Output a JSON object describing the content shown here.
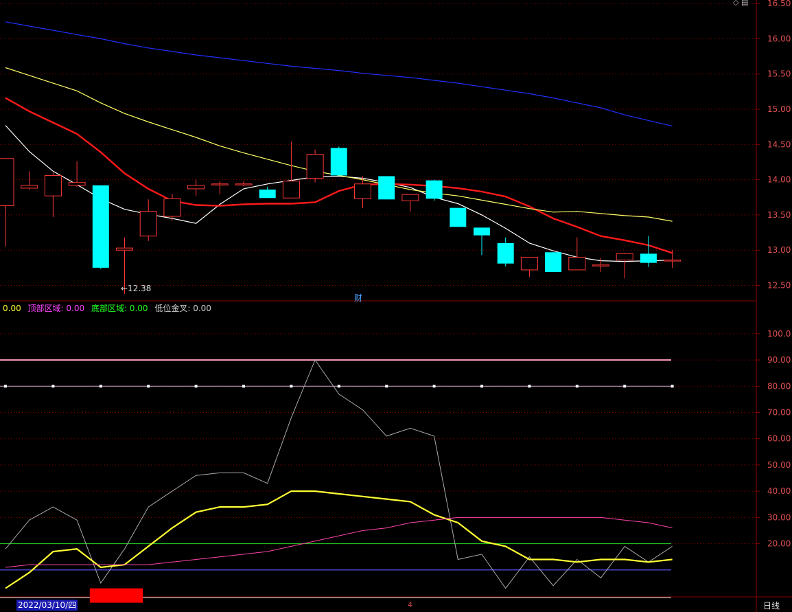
{
  "chart_data": [
    {
      "type": "candlestick",
      "ylim": [
        12.3,
        16.55
      ],
      "y_ticks": [
        "16.50",
        "16.00",
        "15.50",
        "15.00",
        "14.50",
        "14.00",
        "13.50",
        "13.00",
        "12.50"
      ],
      "candles": [
        {
          "o": 13.63,
          "h": 14.3,
          "l": 13.05,
          "c": 14.3
        },
        {
          "o": 13.88,
          "h": 14.12,
          "l": 13.86,
          "c": 13.92
        },
        {
          "o": 13.77,
          "h": 14.1,
          "l": 13.47,
          "c": 14.06
        },
        {
          "o": 13.92,
          "h": 14.26,
          "l": 13.9,
          "c": 13.96
        },
        {
          "o": 13.92,
          "h": 13.92,
          "l": 12.73,
          "c": 12.75
        },
        {
          "o": 13.0,
          "h": 13.18,
          "l": 12.38,
          "c": 13.03
        },
        {
          "o": 13.2,
          "h": 13.72,
          "l": 13.13,
          "c": 13.55
        },
        {
          "o": 13.48,
          "h": 13.8,
          "l": 13.42,
          "c": 13.73
        },
        {
          "o": 13.87,
          "h": 14.0,
          "l": 13.77,
          "c": 13.92
        },
        {
          "o": 13.94,
          "h": 13.98,
          "l": 13.79,
          "c": 13.94
        },
        {
          "o": 13.94,
          "h": 13.98,
          "l": 13.91,
          "c": 13.94
        },
        {
          "o": 13.86,
          "h": 13.9,
          "l": 13.74,
          "c": 13.74
        },
        {
          "o": 13.74,
          "h": 14.54,
          "l": 13.74,
          "c": 13.98
        },
        {
          "o": 14.02,
          "h": 14.43,
          "l": 13.96,
          "c": 14.36
        },
        {
          "o": 14.45,
          "h": 14.47,
          "l": 14.06,
          "c": 14.06
        },
        {
          "o": 13.73,
          "h": 14.05,
          "l": 13.6,
          "c": 13.94
        },
        {
          "o": 14.05,
          "h": 14.05,
          "l": 13.72,
          "c": 13.72
        },
        {
          "o": 13.7,
          "h": 13.8,
          "l": 13.55,
          "c": 13.79
        },
        {
          "o": 13.99,
          "h": 14.0,
          "l": 13.7,
          "c": 13.73
        },
        {
          "o": 13.6,
          "h": 13.6,
          "l": 13.33,
          "c": 13.33
        },
        {
          "o": 13.32,
          "h": 13.32,
          "l": 12.93,
          "c": 13.21
        },
        {
          "o": 13.1,
          "h": 13.18,
          "l": 12.77,
          "c": 12.81
        },
        {
          "o": 12.72,
          "h": 12.9,
          "l": 12.62,
          "c": 12.9
        },
        {
          "o": 12.97,
          "h": 12.97,
          "l": 12.69,
          "c": 12.69
        },
        {
          "o": 12.72,
          "h": 13.18,
          "l": 12.72,
          "c": 12.9
        },
        {
          "o": 12.79,
          "h": 12.89,
          "l": 12.69,
          "c": 12.79
        },
        {
          "o": 12.86,
          "h": 12.96,
          "l": 12.6,
          "c": 12.95
        },
        {
          "o": 12.95,
          "h": 13.2,
          "l": 12.76,
          "c": 12.82
        },
        {
          "o": 12.86,
          "h": 13.0,
          "l": 12.75,
          "c": 12.86
        }
      ],
      "ma_lines": [
        {
          "name": "MA5",
          "color": "#ffffff",
          "values": [
            14.77,
            14.4,
            14.12,
            13.93,
            13.73,
            13.58,
            13.51,
            13.45,
            13.38,
            13.65,
            13.87,
            13.94,
            13.99,
            14.04,
            14.05,
            14.02,
            13.96,
            13.89,
            13.75,
            13.66,
            13.5,
            13.31,
            13.1,
            12.99,
            12.9,
            12.85,
            12.84,
            12.85,
            12.86
          ]
        },
        {
          "name": "MA10",
          "color": "#ff1a1a",
          "values": [
            15.16,
            14.97,
            14.81,
            14.65,
            14.39,
            14.09,
            13.87,
            13.7,
            13.64,
            13.63,
            13.65,
            13.66,
            13.66,
            13.68,
            13.84,
            13.93,
            13.94,
            13.93,
            13.91,
            13.88,
            13.83,
            13.76,
            13.62,
            13.45,
            13.33,
            13.2,
            13.14,
            13.07,
            12.96
          ]
        },
        {
          "name": "MA20",
          "color": "#ffff66",
          "values": [
            15.59,
            15.48,
            15.37,
            15.26,
            15.09,
            14.94,
            14.82,
            14.71,
            14.6,
            14.48,
            14.38,
            14.29,
            14.2,
            14.12,
            14.06,
            14.0,
            13.93,
            13.86,
            13.81,
            13.77,
            13.71,
            13.65,
            13.59,
            13.54,
            13.55,
            13.52,
            13.49,
            13.47,
            13.41
          ]
        },
        {
          "name": "MA60",
          "color": "#2030ff",
          "values": [
            16.24,
            16.18,
            16.12,
            16.06,
            16.0,
            15.93,
            15.87,
            15.82,
            15.77,
            15.73,
            15.69,
            15.65,
            15.61,
            15.58,
            15.55,
            15.51,
            15.48,
            15.45,
            15.41,
            15.37,
            15.32,
            15.27,
            15.22,
            15.16,
            15.09,
            15.02,
            14.92,
            14.84,
            14.76
          ]
        }
      ]
    },
    {
      "type": "line",
      "ylim": [
        0,
        112
      ],
      "y_ticks": [
        "100.0",
        "90.00",
        "80.00",
        "70.00",
        "60.00",
        "50.00",
        "40.00",
        "30.00",
        "20.00"
      ],
      "levels": [
        {
          "value": 90,
          "color": "#ff9ec4"
        },
        {
          "value": 20,
          "color": "#22cc22"
        },
        {
          "value": 10,
          "color": "#5555ff"
        },
        {
          "value": -0.5,
          "color": "#bbbbbb"
        }
      ],
      "dotted_level": 80,
      "series": [
        {
          "color": "#aaaaaa",
          "values": [
            18,
            29,
            34,
            29,
            5,
            18,
            34,
            40,
            46,
            47,
            47,
            43,
            68,
            90,
            77,
            71,
            61,
            64,
            61,
            14,
            16,
            3,
            15,
            4,
            14,
            7,
            19,
            13,
            19
          ]
        },
        {
          "color": "#ffff33",
          "values": [
            3,
            9,
            17,
            18,
            11,
            12,
            19,
            26,
            32,
            34,
            34,
            35,
            40,
            40,
            39,
            38,
            37,
            36,
            31,
            28,
            21,
            19,
            14,
            14,
            13,
            14,
            14,
            13,
            14
          ]
        },
        {
          "color": "#ff44aa",
          "values": [
            11,
            12,
            12,
            12,
            12,
            12,
            12,
            13,
            14,
            15,
            16,
            17,
            19,
            21,
            23,
            25,
            26,
            28,
            29,
            30,
            30,
            30,
            30,
            30,
            30,
            30,
            29,
            28,
            26
          ]
        }
      ],
      "signal_bar": {
        "x_from": 4,
        "x_to": 6,
        "color": "#ff0000"
      }
    }
  ],
  "legend": [
    {
      "text": "0.00",
      "color": "#ffff33"
    },
    {
      "text": "顶部区域: 0.00",
      "color": "#ff44ff"
    },
    {
      "text": "底部区域: 0.00",
      "color": "#22ff22"
    },
    {
      "text": "低位金叉: 0.00",
      "color": "#cccccc"
    }
  ],
  "low_marker": "←12.38",
  "cai_label": "财",
  "date_label": "2022/03/10/四",
  "bottom_marker": "4",
  "period_label": "日线",
  "corner_text": "◇ ▤",
  "colors": {
    "up": "#ff3838",
    "down": "#00ffff",
    "grid": "#8b0000",
    "axis_text": "#e05050"
  }
}
